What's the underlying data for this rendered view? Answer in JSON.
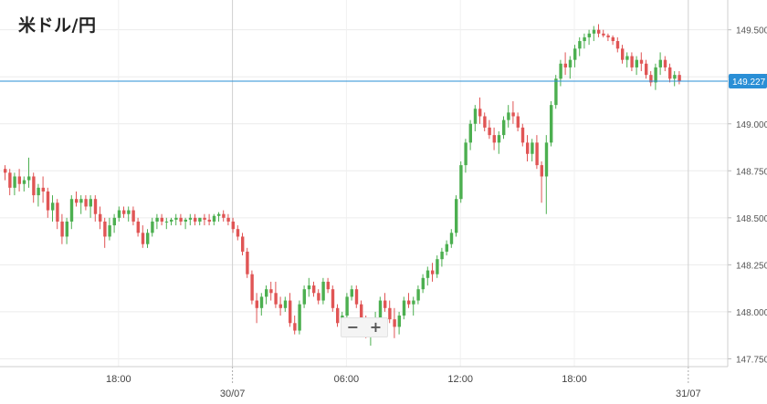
{
  "chart_data": {
    "type": "candlestick",
    "title": "米ドル/円",
    "y_ticks": [
      "149.500",
      "149.250",
      "149.000",
      "148.750",
      "148.500",
      "148.250",
      "148.000",
      "147.750"
    ],
    "y_tick_values": [
      149.5,
      149.25,
      149.0,
      148.75,
      148.5,
      148.25,
      148.0,
      147.75
    ],
    "ylim": [
      147.66,
      149.61
    ],
    "x_ticks": [
      {
        "label": "18:00",
        "index": 24,
        "major": false
      },
      {
        "label": "30/07",
        "index": 48,
        "major": true
      },
      {
        "label": "06:00",
        "index": 72,
        "major": false
      },
      {
        "label": "12:00",
        "index": 96,
        "major": false
      },
      {
        "label": "18:00",
        "index": 120,
        "major": false
      },
      {
        "label": "31/07",
        "index": 144,
        "major": true
      }
    ],
    "current_price": 149.227,
    "current_price_label": "149.227",
    "grid": true,
    "up_color": "#4caf50",
    "down_color": "#e05555",
    "line_color": "#2a8fd6",
    "candles": [
      [
        148.76,
        148.78,
        148.7,
        148.74
      ],
      [
        148.74,
        148.76,
        148.62,
        148.66
      ],
      [
        148.66,
        148.74,
        148.62,
        148.72
      ],
      [
        148.72,
        148.76,
        148.64,
        148.68
      ],
      [
        148.68,
        148.72,
        148.64,
        148.7
      ],
      [
        148.7,
        148.82,
        148.66,
        148.72
      ],
      [
        148.72,
        148.74,
        148.58,
        148.62
      ],
      [
        148.62,
        148.68,
        148.56,
        148.66
      ],
      [
        148.66,
        148.72,
        148.58,
        148.64
      ],
      [
        148.64,
        148.66,
        148.5,
        148.54
      ],
      [
        148.54,
        148.62,
        148.48,
        148.58
      ],
      [
        148.58,
        148.6,
        148.44,
        148.48
      ],
      [
        148.48,
        148.52,
        148.36,
        148.4
      ],
      [
        148.4,
        148.5,
        148.36,
        148.48
      ],
      [
        148.48,
        148.62,
        148.44,
        148.6
      ],
      [
        148.6,
        148.64,
        148.56,
        148.58
      ],
      [
        148.58,
        148.62,
        148.52,
        148.6
      ],
      [
        148.6,
        148.62,
        148.54,
        148.56
      ],
      [
        148.56,
        148.62,
        148.5,
        148.6
      ],
      [
        148.6,
        148.62,
        148.48,
        148.52
      ],
      [
        148.52,
        148.56,
        148.44,
        148.48
      ],
      [
        148.48,
        148.5,
        148.34,
        148.4
      ],
      [
        148.4,
        148.5,
        148.38,
        148.46
      ],
      [
        148.46,
        148.52,
        148.42,
        148.5
      ],
      [
        148.5,
        148.56,
        148.48,
        148.54
      ],
      [
        148.54,
        148.56,
        148.5,
        148.52
      ],
      [
        148.52,
        148.56,
        148.48,
        148.54
      ],
      [
        148.54,
        148.56,
        148.46,
        148.48
      ],
      [
        148.48,
        148.5,
        148.4,
        148.42
      ],
      [
        148.42,
        148.46,
        148.34,
        148.36
      ],
      [
        148.36,
        148.44,
        148.34,
        148.42
      ],
      [
        148.42,
        148.5,
        148.4,
        148.48
      ],
      [
        148.48,
        148.52,
        148.44,
        148.5
      ],
      [
        148.5,
        148.52,
        148.46,
        148.48
      ],
      [
        148.48,
        148.5,
        148.44,
        148.48
      ],
      [
        148.48,
        148.5,
        148.46,
        148.49
      ],
      [
        148.49,
        148.52,
        148.46,
        148.5
      ],
      [
        148.5,
        148.52,
        148.46,
        148.48
      ],
      [
        148.48,
        148.5,
        148.44,
        148.49
      ],
      [
        148.49,
        148.52,
        148.46,
        148.5
      ],
      [
        148.5,
        148.52,
        148.46,
        148.48
      ],
      [
        148.48,
        148.5,
        148.46,
        148.5
      ],
      [
        148.5,
        148.52,
        148.46,
        148.49
      ],
      [
        148.49,
        148.52,
        148.46,
        148.48
      ],
      [
        148.48,
        148.52,
        148.46,
        148.51
      ],
      [
        148.51,
        148.53,
        148.48,
        148.52
      ],
      [
        148.52,
        148.54,
        148.48,
        148.5
      ],
      [
        148.5,
        148.52,
        148.46,
        148.48
      ],
      [
        148.48,
        148.5,
        148.42,
        148.44
      ],
      [
        148.44,
        148.46,
        148.38,
        148.4
      ],
      [
        148.4,
        148.42,
        148.3,
        148.32
      ],
      [
        148.32,
        148.34,
        148.18,
        148.2
      ],
      [
        148.2,
        148.22,
        148.04,
        148.06
      ],
      [
        148.06,
        148.1,
        147.94,
        148.02
      ],
      [
        148.02,
        148.1,
        147.98,
        148.08
      ],
      [
        148.08,
        148.14,
        148.04,
        148.12
      ],
      [
        148.12,
        148.16,
        148.06,
        148.1
      ],
      [
        148.1,
        148.16,
        148.02,
        148.04
      ],
      [
        148.04,
        148.08,
        147.98,
        148.02
      ],
      [
        148.02,
        148.08,
        148.0,
        148.06
      ],
      [
        148.06,
        148.1,
        147.92,
        147.94
      ],
      [
        147.94,
        147.98,
        147.88,
        147.9
      ],
      [
        147.9,
        148.06,
        147.88,
        148.04
      ],
      [
        148.04,
        148.14,
        148.02,
        148.12
      ],
      [
        148.12,
        148.18,
        148.08,
        148.14
      ],
      [
        148.14,
        148.16,
        148.08,
        148.1
      ],
      [
        148.1,
        148.12,
        148.04,
        148.06
      ],
      [
        148.06,
        148.18,
        148.04,
        148.16
      ],
      [
        148.16,
        148.18,
        148.1,
        148.12
      ],
      [
        148.12,
        148.14,
        148.0,
        148.02
      ],
      [
        148.02,
        148.04,
        147.92,
        147.94
      ],
      [
        147.94,
        148.0,
        147.9,
        147.98
      ],
      [
        147.98,
        148.1,
        147.96,
        148.08
      ],
      [
        148.08,
        148.14,
        148.06,
        148.12
      ],
      [
        148.12,
        148.14,
        148.02,
        148.04
      ],
      [
        148.04,
        148.06,
        147.92,
        147.94
      ],
      [
        147.94,
        147.98,
        147.86,
        147.9
      ],
      [
        147.9,
        147.94,
        147.82,
        147.92
      ],
      [
        147.92,
        148.0,
        147.88,
        147.96
      ],
      [
        147.96,
        148.08,
        147.94,
        148.06
      ],
      [
        148.06,
        148.1,
        148.0,
        148.02
      ],
      [
        148.02,
        148.06,
        147.94,
        147.96
      ],
      [
        147.96,
        148.02,
        147.86,
        147.92
      ],
      [
        147.92,
        148.0,
        147.88,
        147.98
      ],
      [
        147.98,
        148.08,
        147.96,
        148.06
      ],
      [
        148.06,
        148.1,
        148.02,
        148.04
      ],
      [
        148.04,
        148.08,
        147.98,
        148.06
      ],
      [
        148.06,
        148.14,
        148.04,
        148.12
      ],
      [
        148.12,
        148.2,
        148.1,
        148.18
      ],
      [
        148.18,
        148.24,
        148.14,
        148.22
      ],
      [
        148.22,
        148.26,
        148.16,
        148.2
      ],
      [
        148.2,
        148.3,
        148.18,
        148.28
      ],
      [
        148.28,
        148.34,
        148.24,
        148.32
      ],
      [
        148.32,
        148.38,
        148.3,
        148.36
      ],
      [
        148.36,
        148.44,
        148.34,
        148.42
      ],
      [
        148.42,
        148.62,
        148.4,
        148.6
      ],
      [
        148.6,
        148.8,
        148.58,
        148.78
      ],
      [
        148.78,
        148.92,
        148.74,
        148.9
      ],
      [
        148.9,
        149.02,
        148.86,
        149.0
      ],
      [
        149.0,
        149.1,
        148.96,
        149.08
      ],
      [
        149.08,
        149.14,
        149.0,
        149.04
      ],
      [
        149.04,
        149.06,
        148.96,
        148.98
      ],
      [
        148.98,
        149.02,
        148.92,
        148.94
      ],
      [
        148.94,
        148.98,
        148.86,
        148.9
      ],
      [
        148.9,
        148.96,
        148.84,
        148.94
      ],
      [
        148.94,
        149.04,
        148.92,
        149.02
      ],
      [
        149.02,
        149.1,
        148.98,
        149.06
      ],
      [
        149.06,
        149.12,
        149.0,
        149.04
      ],
      [
        149.04,
        149.06,
        148.96,
        148.98
      ],
      [
        148.98,
        149.0,
        148.88,
        148.9
      ],
      [
        148.9,
        148.94,
        148.8,
        148.84
      ],
      [
        148.84,
        148.92,
        148.8,
        148.9
      ],
      [
        148.9,
        148.94,
        148.76,
        148.78
      ],
      [
        148.78,
        148.8,
        148.58,
        148.72
      ],
      [
        148.72,
        148.94,
        148.52,
        148.9
      ],
      [
        148.9,
        149.12,
        148.88,
        149.1
      ],
      [
        149.1,
        149.26,
        149.08,
        149.24
      ],
      [
        149.24,
        149.34,
        149.2,
        149.32
      ],
      [
        149.32,
        149.38,
        149.26,
        149.3
      ],
      [
        149.3,
        149.36,
        149.24,
        149.34
      ],
      [
        149.34,
        149.42,
        149.3,
        149.4
      ],
      [
        149.4,
        149.46,
        149.36,
        149.44
      ],
      [
        149.44,
        149.48,
        149.4,
        149.46
      ],
      [
        149.46,
        149.5,
        149.42,
        149.48
      ],
      [
        149.48,
        149.52,
        149.44,
        149.5
      ],
      [
        149.5,
        149.53,
        149.46,
        149.48
      ],
      [
        149.48,
        149.5,
        149.46,
        149.47
      ],
      [
        149.47,
        149.48,
        149.44,
        149.46
      ],
      [
        149.46,
        149.47,
        149.42,
        149.44
      ],
      [
        149.44,
        149.46,
        149.38,
        149.4
      ],
      [
        149.4,
        149.42,
        149.32,
        149.34
      ],
      [
        149.34,
        149.38,
        149.3,
        149.36
      ],
      [
        149.36,
        149.38,
        149.28,
        149.3
      ],
      [
        149.3,
        149.36,
        149.26,
        149.34
      ],
      [
        149.34,
        149.38,
        149.28,
        149.32
      ],
      [
        149.32,
        149.34,
        149.24,
        149.26
      ],
      [
        149.26,
        149.28,
        149.2,
        149.22
      ],
      [
        149.22,
        149.32,
        149.18,
        149.3
      ],
      [
        149.3,
        149.38,
        149.26,
        149.34
      ],
      [
        149.34,
        149.36,
        149.28,
        149.3
      ],
      [
        149.3,
        149.32,
        149.22,
        149.24
      ],
      [
        149.24,
        149.28,
        149.2,
        149.26
      ],
      [
        149.26,
        149.28,
        149.21,
        149.227
      ]
    ]
  },
  "zoom": {
    "minus": "−",
    "plus": "+"
  }
}
